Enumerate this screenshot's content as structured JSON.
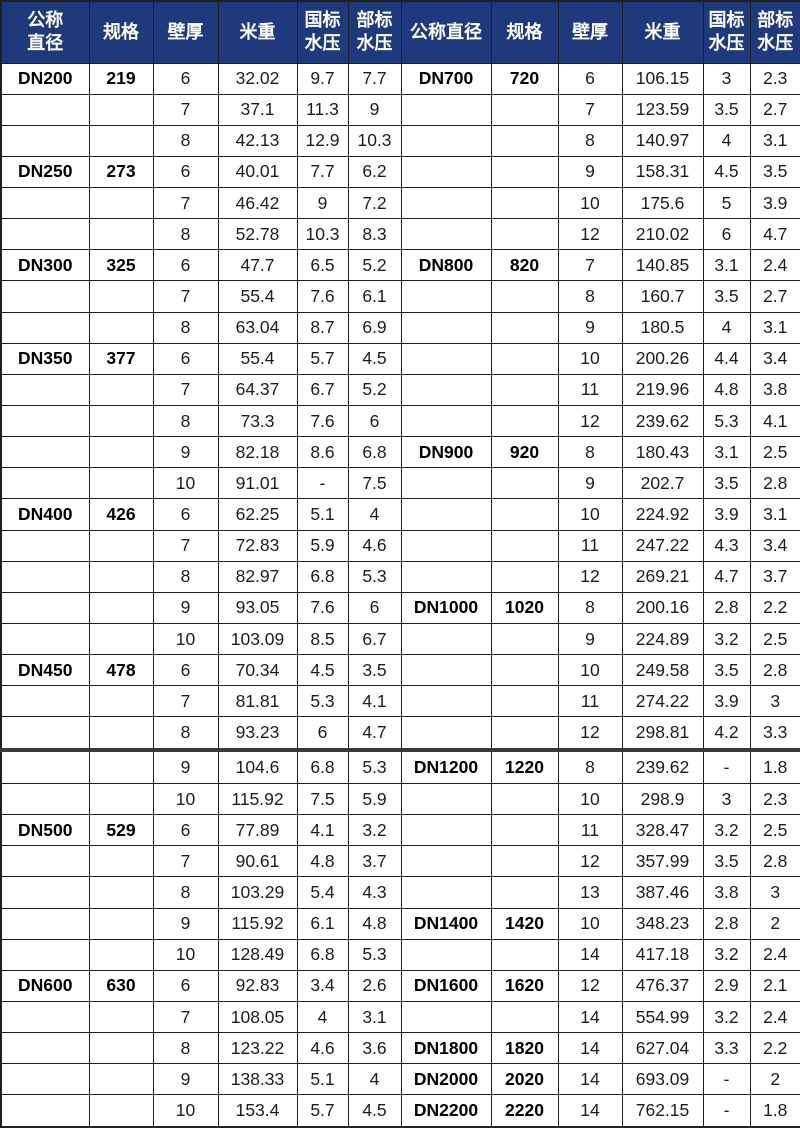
{
  "colors": {
    "header_bg": "#1e3a7d",
    "header_text": "#ffffff",
    "border": "#1f1f1f",
    "body_bg": "#ffffff",
    "body_text": "#1c1c1c"
  },
  "thick_divider_row_index": 22,
  "chart_data": {
    "type": "table",
    "columns": [
      "公称\n直径",
      "规格",
      "壁厚",
      "米重",
      "国标\n水压",
      "部标\n水压",
      "公称直径",
      "规格",
      "壁厚",
      "米重",
      "国标\n水压",
      "部标\n水压"
    ],
    "rows": [
      [
        "DN200",
        "219",
        "6",
        "32.02",
        "9.7",
        "7.7",
        "DN700",
        "720",
        "6",
        "106.15",
        "3",
        "2.3"
      ],
      [
        "",
        "",
        "7",
        "37.1",
        "11.3",
        "9",
        "",
        "",
        "7",
        "123.59",
        "3.5",
        "2.7"
      ],
      [
        "",
        "",
        "8",
        "42.13",
        "12.9",
        "10.3",
        "",
        "",
        "8",
        "140.97",
        "4",
        "3.1"
      ],
      [
        "DN250",
        "273",
        "6",
        "40.01",
        "7.7",
        "6.2",
        "",
        "",
        "9",
        "158.31",
        "4.5",
        "3.5"
      ],
      [
        "",
        "",
        "7",
        "46.42",
        "9",
        "7.2",
        "",
        "",
        "10",
        "175.6",
        "5",
        "3.9"
      ],
      [
        "",
        "",
        "8",
        "52.78",
        "10.3",
        "8.3",
        "",
        "",
        "12",
        "210.02",
        "6",
        "4.7"
      ],
      [
        "DN300",
        "325",
        "6",
        "47.7",
        "6.5",
        "5.2",
        "DN800",
        "820",
        "7",
        "140.85",
        "3.1",
        "2.4"
      ],
      [
        "",
        "",
        "7",
        "55.4",
        "7.6",
        "6.1",
        "",
        "",
        "8",
        "160.7",
        "3.5",
        "2.7"
      ],
      [
        "",
        "",
        "8",
        "63.04",
        "8.7",
        "6.9",
        "",
        "",
        "9",
        "180.5",
        "4",
        "3.1"
      ],
      [
        "DN350",
        "377",
        "6",
        "55.4",
        "5.7",
        "4.5",
        "",
        "",
        "10",
        "200.26",
        "4.4",
        "3.4"
      ],
      [
        "",
        "",
        "7",
        "64.37",
        "6.7",
        "5.2",
        "",
        "",
        "11",
        "219.96",
        "4.8",
        "3.8"
      ],
      [
        "",
        "",
        "8",
        "73.3",
        "7.6",
        "6",
        "",
        "",
        "12",
        "239.62",
        "5.3",
        "4.1"
      ],
      [
        "",
        "",
        "9",
        "82.18",
        "8.6",
        "6.8",
        "DN900",
        "920",
        "8",
        "180.43",
        "3.1",
        "2.5"
      ],
      [
        "",
        "",
        "10",
        "91.01",
        "-",
        "7.5",
        "",
        "",
        "9",
        "202.7",
        "3.5",
        "2.8"
      ],
      [
        "DN400",
        "426",
        "6",
        "62.25",
        "5.1",
        "4",
        "",
        "",
        "10",
        "224.92",
        "3.9",
        "3.1"
      ],
      [
        "",
        "",
        "7",
        "72.83",
        "5.9",
        "4.6",
        "",
        "",
        "11",
        "247.22",
        "4.3",
        "3.4"
      ],
      [
        "",
        "",
        "8",
        "82.97",
        "6.8",
        "5.3",
        "",
        "",
        "12",
        "269.21",
        "4.7",
        "3.7"
      ],
      [
        "",
        "",
        "9",
        "93.05",
        "7.6",
        "6",
        "DN1000",
        "1020",
        "8",
        "200.16",
        "2.8",
        "2.2"
      ],
      [
        "",
        "",
        "10",
        "103.09",
        "8.5",
        "6.7",
        "",
        "",
        "9",
        "224.89",
        "3.2",
        "2.5"
      ],
      [
        "DN450",
        "478",
        "6",
        "70.34",
        "4.5",
        "3.5",
        "",
        "",
        "10",
        "249.58",
        "3.5",
        "2.8"
      ],
      [
        "",
        "",
        "7",
        "81.81",
        "5.3",
        "4.1",
        "",
        "",
        "11",
        "274.22",
        "3.9",
        "3"
      ],
      [
        "",
        "",
        "8",
        "93.23",
        "6",
        "4.7",
        "",
        "",
        "12",
        "298.81",
        "4.2",
        "3.3"
      ],
      [
        "",
        "",
        "9",
        "104.6",
        "6.8",
        "5.3",
        "DN1200",
        "1220",
        "8",
        "239.62",
        "-",
        "1.8"
      ],
      [
        "",
        "",
        "10",
        "115.92",
        "7.5",
        "5.9",
        "",
        "",
        "10",
        "298.9",
        "3",
        "2.3"
      ],
      [
        "DN500",
        "529",
        "6",
        "77.89",
        "4.1",
        "3.2",
        "",
        "",
        "11",
        "328.47",
        "3.2",
        "2.5"
      ],
      [
        "",
        "",
        "7",
        "90.61",
        "4.8",
        "3.7",
        "",
        "",
        "12",
        "357.99",
        "3.5",
        "2.8"
      ],
      [
        "",
        "",
        "8",
        "103.29",
        "5.4",
        "4.3",
        "",
        "",
        "13",
        "387.46",
        "3.8",
        "3"
      ],
      [
        "",
        "",
        "9",
        "115.92",
        "6.1",
        "4.8",
        "DN1400",
        "1420",
        "10",
        "348.23",
        "2.8",
        "2"
      ],
      [
        "",
        "",
        "10",
        "128.49",
        "6.8",
        "5.3",
        "",
        "",
        "14",
        "417.18",
        "3.2",
        "2.4"
      ],
      [
        "DN600",
        "630",
        "6",
        "92.83",
        "3.4",
        "2.6",
        "DN1600",
        "1620",
        "12",
        "476.37",
        "2.9",
        "2.1"
      ],
      [
        "",
        "",
        "7",
        "108.05",
        "4",
        "3.1",
        "",
        "",
        "14",
        "554.99",
        "3.2",
        "2.4"
      ],
      [
        "",
        "",
        "8",
        "123.22",
        "4.6",
        "3.6",
        "DN1800",
        "1820",
        "14",
        "627.04",
        "3.3",
        "2.2"
      ],
      [
        "",
        "",
        "9",
        "138.33",
        "5.1",
        "4",
        "DN2000",
        "2020",
        "14",
        "693.09",
        "-",
        "2"
      ],
      [
        "",
        "",
        "10",
        "153.4",
        "5.7",
        "4.5",
        "DN2200",
        "2220",
        "14",
        "762.15",
        "-",
        "1.8"
      ]
    ]
  }
}
